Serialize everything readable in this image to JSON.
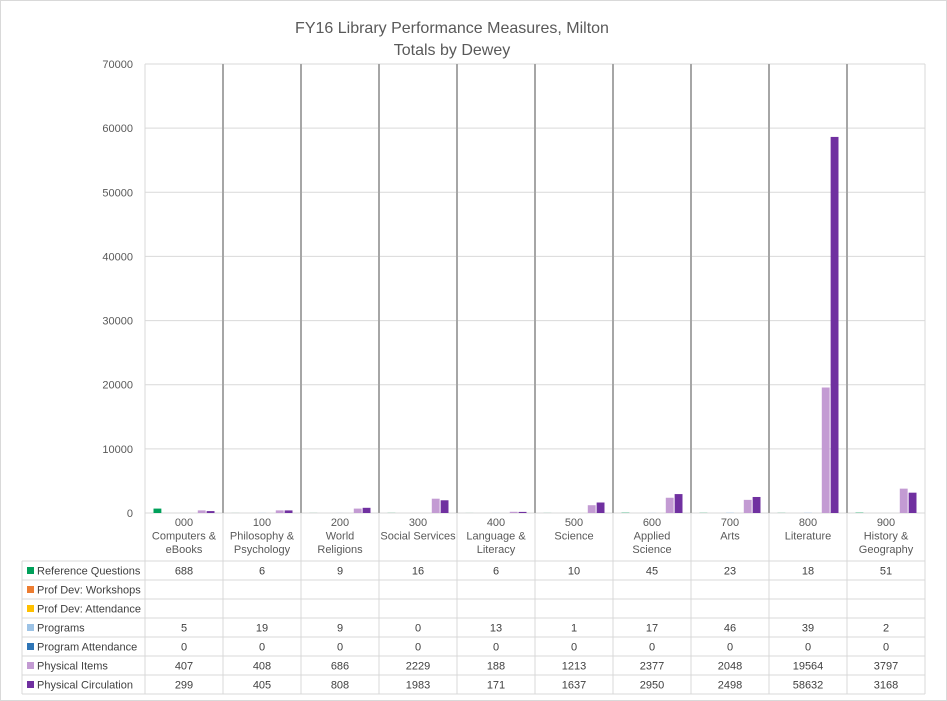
{
  "chart_data": {
    "type": "bar",
    "title": "FY16 Library Performance Measures, Milton",
    "subtitle": "Totals by Dewey",
    "ylim": [
      0,
      70000
    ],
    "yticks": [
      0,
      10000,
      20000,
      30000,
      40000,
      50000,
      60000,
      70000
    ],
    "grid": true,
    "legend_placement": "data-table",
    "categories": [
      [
        "000",
        "Computers &",
        "eBooks"
      ],
      [
        "100",
        "Philosophy &",
        "Psychology"
      ],
      [
        "200",
        "World",
        "Religions"
      ],
      [
        "300",
        "Social Services"
      ],
      [
        "400",
        "Language &",
        "Literacy"
      ],
      [
        "500",
        "Science"
      ],
      [
        "600",
        "Applied",
        "Science"
      ],
      [
        "700",
        "Arts"
      ],
      [
        "800",
        "Literature"
      ],
      [
        "900",
        "History &",
        "Geography"
      ]
    ],
    "series": [
      {
        "name": "Reference Questions",
        "color": "#00A05A",
        "values": [
          688,
          6,
          9,
          16,
          6,
          10,
          45,
          23,
          18,
          51
        ]
      },
      {
        "name": "Prof Dev: Workshops",
        "color": "#ED7D31",
        "values": [
          null,
          null,
          null,
          null,
          null,
          null,
          null,
          null,
          null,
          null
        ]
      },
      {
        "name": "Prof Dev: Attendance",
        "color": "#FFC000",
        "values": [
          null,
          null,
          null,
          null,
          null,
          null,
          null,
          null,
          null,
          null
        ]
      },
      {
        "name": "Programs",
        "color": "#9DC3E6",
        "values": [
          5,
          19,
          9,
          0,
          13,
          1,
          17,
          46,
          39,
          2
        ]
      },
      {
        "name": "Program Attendance",
        "color": "#2E75B6",
        "values": [
          0,
          0,
          0,
          0,
          0,
          0,
          0,
          0,
          0,
          0
        ]
      },
      {
        "name": "Physical Items",
        "color": "#C39BD3",
        "values": [
          407,
          408,
          686,
          2229,
          188,
          1213,
          2377,
          2048,
          19564,
          3797
        ]
      },
      {
        "name": "Physical Circulation",
        "color": "#7030A0",
        "values": [
          299,
          405,
          808,
          1983,
          171,
          1637,
          2950,
          2498,
          58632,
          3168
        ]
      }
    ]
  }
}
